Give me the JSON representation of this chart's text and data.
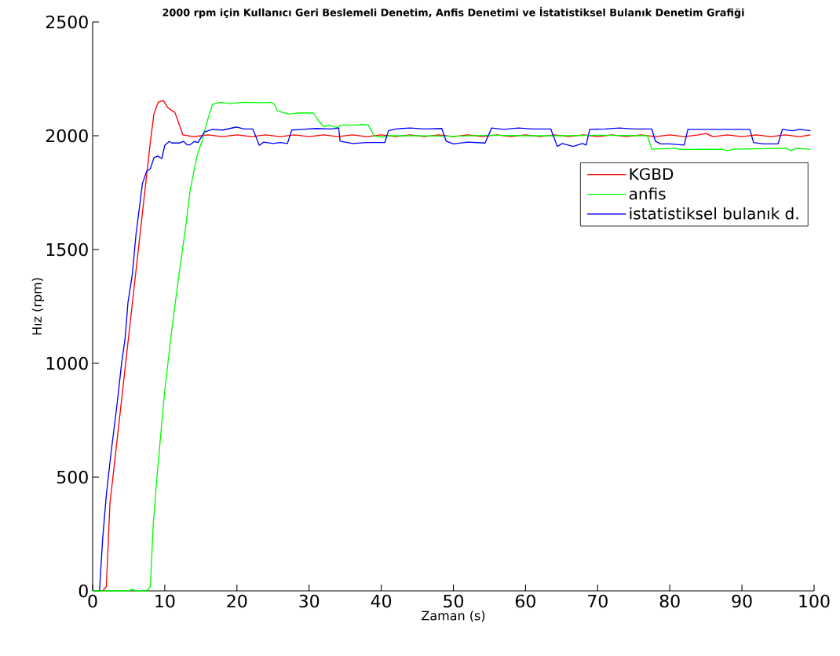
{
  "chart_data": {
    "type": "line",
    "title": "2000 rpm için Kullanıcı Geri Beslemeli Denetim, Anfis Denetimi ve İstatistiksel Bulanık Denetim Grafiği",
    "xlabel": "Zaman (s)",
    "ylabel": "Hız (rpm)",
    "xlim": [
      0,
      100
    ],
    "ylim": [
      0,
      2500
    ],
    "xticks": [
      0,
      10,
      20,
      30,
      40,
      50,
      60,
      70,
      80,
      90,
      100
    ],
    "yticks": [
      0,
      500,
      1000,
      1500,
      2000,
      2500
    ],
    "legend": "top right",
    "series": [
      {
        "name": "KGBD",
        "color": "#ff0000",
        "x": [
          1.4,
          1.9,
          2.4,
          3.0,
          8.0,
          8.5,
          9.1,
          9.8,
          10.4,
          11.0,
          11.4,
          12.5,
          14,
          16,
          18,
          20,
          22,
          24,
          26,
          28,
          30,
          32,
          34,
          36,
          38,
          40,
          42,
          44,
          46,
          48,
          50,
          52,
          54,
          56,
          58,
          60,
          62,
          64,
          66,
          68,
          70,
          72,
          74,
          76,
          78,
          80,
          82,
          84,
          85,
          86,
          88,
          90,
          92,
          94,
          96,
          98,
          99.5
        ],
        "values": [
          0,
          19,
          386,
          552,
          1973,
          2097,
          2148,
          2155,
          2124,
          2110,
          2103,
          2004,
          1996,
          2004,
          1996,
          2004,
          1996,
          2004,
          1996,
          2004,
          1996,
          2004,
          1996,
          2004,
          1996,
          2004,
          1996,
          2004,
          1996,
          2004,
          1996,
          2004,
          1996,
          2004,
          1996,
          2004,
          1996,
          2004,
          1996,
          2004,
          1996,
          2004,
          1996,
          2004,
          1996,
          2004,
          1996,
          2004,
          2010,
          1996,
          2004,
          1996,
          2004,
          1996,
          2004,
          1996,
          2004
        ]
      },
      {
        "name": "anfis",
        "color": "#00ff00",
        "x": [
          0,
          5.0,
          5.5,
          6.0,
          7.5,
          8.0,
          8.4,
          8.9,
          9.5,
          10.0,
          11.0,
          12.0,
          12.9,
          13.5,
          14.0,
          14.5,
          15.2,
          15.9,
          16.6,
          17.7,
          19,
          21,
          23,
          24.1,
          24.7,
          25.2,
          25.6,
          26.3,
          27.2,
          28.5,
          30.6,
          31.4,
          32.1,
          32.8,
          33.9,
          34.4,
          36.8,
          37.3,
          38.2,
          39.0,
          40.0,
          41.1,
          45,
          50,
          55,
          60,
          65,
          70,
          76.9,
          77.5,
          80.9,
          81.3,
          87.3,
          88.0,
          88.7,
          96.1,
          96.8,
          97.4,
          99.5
        ],
        "values": [
          0,
          0,
          8,
          0,
          0,
          19,
          293,
          493,
          709,
          881,
          1155,
          1398,
          1600,
          1757,
          1838,
          1916,
          1980,
          2066,
          2138,
          2147,
          2142,
          2147,
          2145,
          2145,
          2147,
          2138,
          2110,
          2103,
          2095,
          2100,
          2100,
          2062,
          2039,
          2047,
          2035,
          2047,
          2047,
          2050,
          2047,
          2000,
          1994,
          2000,
          2000,
          1998,
          2002,
          2000,
          2000,
          2002,
          2000,
          1941,
          1945,
          1940,
          1941,
          1934,
          1941,
          1945,
          1934,
          1945,
          1940
        ]
      },
      {
        "name": "istatistiksel bulanık d.",
        "color": "#0000ff",
        "x": [
          0.95,
          1.4,
          1.9,
          2.5,
          3.4,
          4.0,
          4.5,
          4.9,
          5.5,
          6.0,
          6.9,
          7.5,
          8.0,
          8.5,
          9.0,
          9.6,
          10.0,
          10.6,
          11.0,
          12.0,
          12.6,
          13.1,
          13.5,
          14.1,
          14.6,
          15.5,
          16.6,
          18,
          19.9,
          21,
          22.2,
          23.1,
          23.7,
          25,
          26,
          27.0,
          27.6,
          29,
          31,
          33,
          34.1,
          34.3,
          36,
          38,
          40.5,
          41.0,
          42,
          44,
          46,
          48.4,
          49,
          50,
          52,
          54.4,
          55.3,
          57,
          59,
          61,
          63.5,
          64.4,
          65.1,
          66.6,
          67.9,
          68.4,
          68.9,
          71,
          73,
          75,
          77.5,
          78.0,
          78.7,
          80,
          82.0,
          82.5,
          85,
          87,
          89,
          91.1,
          91.6,
          93,
          95.0,
          95.6,
          97,
          98,
          99.5
        ],
        "values": [
          0,
          234,
          421,
          593,
          824,
          996,
          1110,
          1268,
          1391,
          1563,
          1790,
          1845,
          1855,
          1903,
          1911,
          1900,
          1958,
          1975,
          1968,
          1968,
          1975,
          1960,
          1960,
          1975,
          1970,
          2017,
          2028,
          2025,
          2038,
          2030,
          2030,
          1958,
          1972,
          1966,
          1970,
          1966,
          2025,
          2028,
          2032,
          2030,
          2034,
          1976,
          1966,
          1970,
          1970,
          2022,
          2030,
          2034,
          2030,
          2032,
          1976,
          1964,
          1972,
          1968,
          2034,
          2028,
          2034,
          2030,
          2030,
          1953,
          1966,
          1953,
          1966,
          1959,
          2028,
          2030,
          2034,
          2030,
          2030,
          1976,
          1964,
          1964,
          1959,
          2028,
          2028,
          2028,
          2028,
          2028,
          1970,
          1964,
          1964,
          2028,
          2022,
          2028,
          2022
        ]
      }
    ]
  }
}
